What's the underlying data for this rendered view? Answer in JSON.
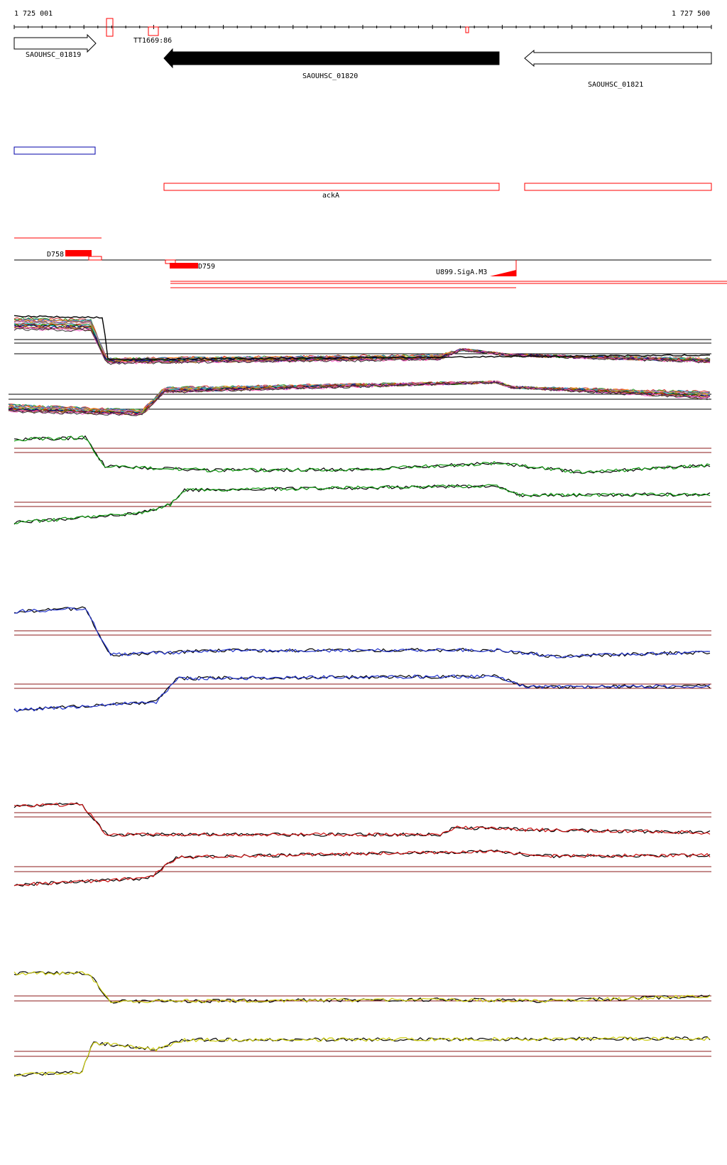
{
  "coords": {
    "start": "1 725 001",
    "end": "1 727 500"
  },
  "genes": [
    {
      "id": "SAOUHSC_01819"
    },
    {
      "id": "SAOUHSC_01820"
    },
    {
      "id": "SAOUHSC_01821"
    }
  ],
  "features": {
    "terminator": "TT1669:86",
    "operon": "ackA",
    "segments": [
      "D758",
      "D759"
    ],
    "promoter": "U899.SigA.M3"
  },
  "colors": {
    "track_red": "#ff0000",
    "track_blue": "#0000aa",
    "ref_line": "#8b1a1a",
    "panel_green": "#119911",
    "panel_blue": "#2233cc",
    "panel_red": "#cc1111",
    "panel_yellow": "#cccc11",
    "trace_black": "#000000"
  }
}
